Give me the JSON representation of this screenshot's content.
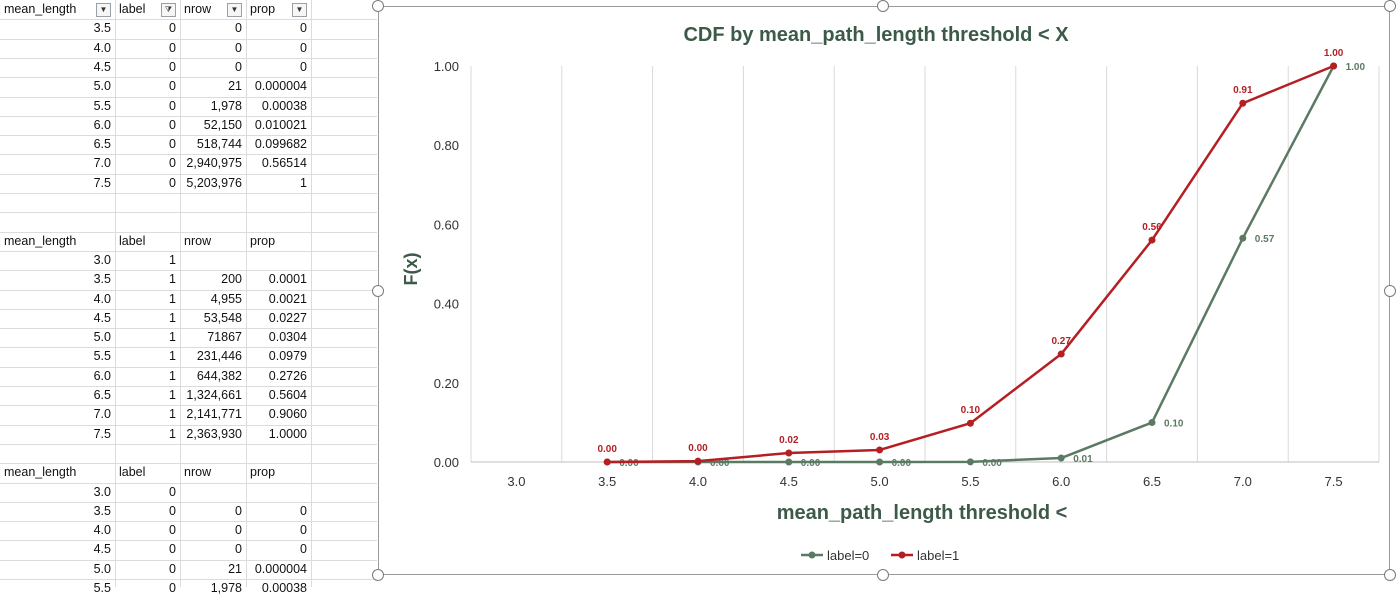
{
  "spreadsheet": {
    "table1": {
      "headers": [
        "mean_length",
        "label",
        "nrow",
        "prop"
      ],
      "rows": [
        [
          "3.5",
          "0",
          "0",
          "0"
        ],
        [
          "4.0",
          "0",
          "0",
          "0"
        ],
        [
          "4.5",
          "0",
          "0",
          "0"
        ],
        [
          "5.0",
          "0",
          "21",
          "0.000004"
        ],
        [
          "5.5",
          "0",
          "1,978",
          "0.00038"
        ],
        [
          "6.0",
          "0",
          "52,150",
          "0.010021"
        ],
        [
          "6.5",
          "0",
          "518,744",
          "0.099682"
        ],
        [
          "7.0",
          "0",
          "2,940,975",
          "0.56514"
        ],
        [
          "7.5",
          "0",
          "5,203,976",
          "1"
        ]
      ]
    },
    "table2": {
      "headers": [
        "mean_length",
        "label",
        "nrow",
        "prop"
      ],
      "rows": [
        [
          "3.0",
          "1",
          "",
          ""
        ],
        [
          "3.5",
          "1",
          "200",
          "0.0001"
        ],
        [
          "4.0",
          "1",
          "4,955",
          "0.0021"
        ],
        [
          "4.5",
          "1",
          "53,548",
          "0.0227"
        ],
        [
          "5.0",
          "1",
          "71867",
          "0.0304"
        ],
        [
          "5.5",
          "1",
          "231,446",
          "0.0979"
        ],
        [
          "6.0",
          "1",
          "644,382",
          "0.2726"
        ],
        [
          "6.5",
          "1",
          "1,324,661",
          "0.5604"
        ],
        [
          "7.0",
          "1",
          "2,141,771",
          "0.9060"
        ],
        [
          "7.5",
          "1",
          "2,363,930",
          "1.0000"
        ]
      ]
    },
    "table3": {
      "headers": [
        "mean_length",
        "label",
        "nrow",
        "prop"
      ],
      "rows": [
        [
          "3.0",
          "0",
          "",
          ""
        ],
        [
          "3.5",
          "0",
          "0",
          "0"
        ],
        [
          "4.0",
          "0",
          "0",
          "0"
        ],
        [
          "4.5",
          "0",
          "0",
          "0"
        ],
        [
          "5.0",
          "0",
          "21",
          "0.000004"
        ],
        [
          "5.5",
          "0",
          "1,978",
          "0.00038"
        ]
      ]
    }
  },
  "chart_data": {
    "type": "line",
    "title": "CDF by mean_path_length threshold < X",
    "xlabel": "mean_path_length threshold <",
    "ylabel": "F(x)",
    "categories": [
      "3.0",
      "3.5",
      "4.0",
      "4.5",
      "5.0",
      "5.5",
      "6.0",
      "6.5",
      "7.0",
      "7.5"
    ],
    "y_ticks": [
      "0.00",
      "0.20",
      "0.40",
      "0.60",
      "0.80",
      "1.00"
    ],
    "ylim": [
      0,
      1
    ],
    "grid": "vertical",
    "legend_position": "bottom",
    "series": [
      {
        "name": "label=0",
        "color": "#5b7a63",
        "values": [
          null,
          0,
          0,
          0,
          4e-06,
          0.00038,
          0.010021,
          0.099682,
          0.56514,
          1
        ],
        "labels": [
          null,
          "0.00",
          "0.00",
          "0.00",
          "0.00",
          "0.00",
          "0.01",
          "0.10",
          "0.57",
          "1.00"
        ]
      },
      {
        "name": "label=1",
        "color": "#b51f24",
        "values": [
          null,
          0.0001,
          0.0021,
          0.0227,
          0.0304,
          0.0979,
          0.2726,
          0.5604,
          0.906,
          1.0
        ],
        "labels": [
          null,
          "0.00",
          "0.00",
          "0.02",
          "0.03",
          "0.10",
          "0.27",
          "0.56",
          "0.91",
          "1.00"
        ]
      }
    ]
  }
}
